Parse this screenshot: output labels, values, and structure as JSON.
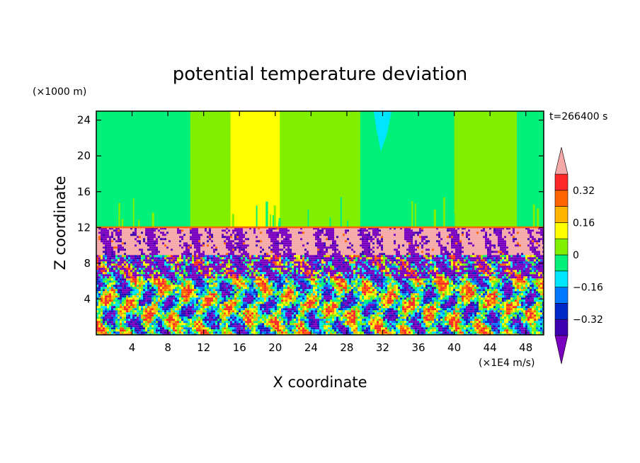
{
  "chart_data": {
    "type": "heatmap",
    "title": "potential temperature deviation",
    "xlabel": "X coordinate",
    "ylabel": "Z coordinate",
    "x_unit": "(×1E4 m/s)",
    "y_unit": "(×1000 m)",
    "time_label": "t=266400 s",
    "xlim": [
      0,
      50
    ],
    "ylim": [
      0,
      25
    ],
    "x_ticks": [
      "4",
      "8",
      "12",
      "16",
      "20",
      "24",
      "28",
      "32",
      "36",
      "40",
      "44",
      "48"
    ],
    "x_tick_values": [
      4,
      8,
      12,
      16,
      20,
      24,
      28,
      32,
      36,
      40,
      44,
      48
    ],
    "y_ticks": [
      "4",
      "8",
      "12",
      "16",
      "20",
      "24"
    ],
    "y_tick_values": [
      4,
      8,
      12,
      16,
      20,
      24
    ],
    "colorbar": {
      "levels": [
        -0.4,
        -0.32,
        -0.24,
        -0.16,
        -0.08,
        0,
        0.08,
        0.16,
        0.24,
        0.32,
        0.4
      ],
      "labels": [
        "0.32",
        "0.16",
        "0",
        "−0.16",
        "−0.32"
      ],
      "label_values": [
        0.32,
        0.16,
        0,
        -0.16,
        -0.32
      ],
      "colors": [
        "#7a00c0",
        "#3c00b0",
        "#0028c8",
        "#0078ff",
        "#00e6ff",
        "#00f07a",
        "#80f000",
        "#ffff00",
        "#ffb400",
        "#ff6400",
        "#ff2828",
        "#f5a8a8"
      ],
      "extend": "both"
    },
    "upper_bands": [
      {
        "x0": 0,
        "x1": 10.5,
        "value": 0.0,
        "color": "#00f07a"
      },
      {
        "x0": 10.5,
        "x1": 15,
        "value": 0.08,
        "color": "#80f000"
      },
      {
        "x0": 15,
        "x1": 20.5,
        "value": 0.16,
        "color": "#ffff00"
      },
      {
        "x0": 20.5,
        "x1": 29.5,
        "value": 0.08,
        "color": "#80f000"
      },
      {
        "x0": 29.5,
        "x1": 40,
        "value": 0.0,
        "color": "#00f07a"
      },
      {
        "x0": 40,
        "x1": 47,
        "value": 0.08,
        "color": "#80f000"
      },
      {
        "x0": 47,
        "x1": 50,
        "value": 0.0,
        "color": "#00f07a"
      }
    ],
    "tropopause_z": 12
  }
}
